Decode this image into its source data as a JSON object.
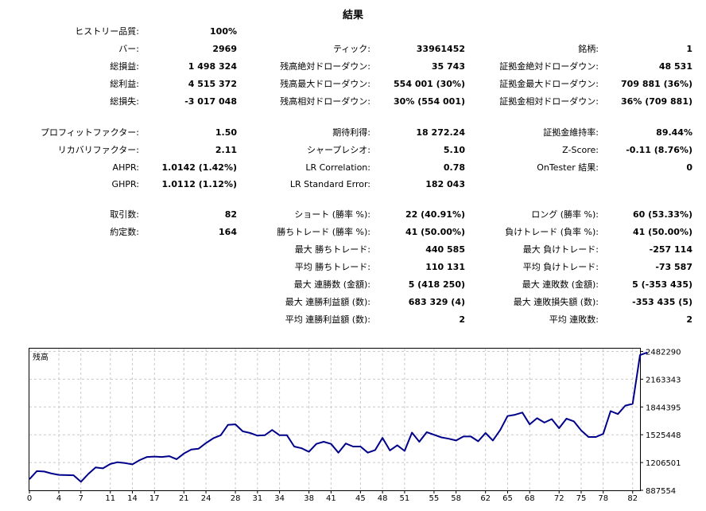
{
  "title": "結果",
  "rows": [
    {
      "y": 40,
      "cells": [
        {
          "label": "ヒストリー品質:",
          "value": "100%"
        },
        null,
        null
      ]
    },
    {
      "y": 62,
      "cells": [
        {
          "label": "バー:",
          "value": "2969"
        },
        {
          "label": "ティック:",
          "value": "33961452"
        },
        {
          "label": "銘柄:",
          "value": "1"
        }
      ]
    },
    {
      "y": 84,
      "cells": [
        {
          "label": "総損益:",
          "value": "1 498 324"
        },
        {
          "label": "残高絶対ドローダウン:",
          "value": "35 743"
        },
        {
          "label": "証拠金絶対ドローダウン:",
          "value": "48 531"
        }
      ]
    },
    {
      "y": 106,
      "cells": [
        {
          "label": "総利益:",
          "value": "4 515 372"
        },
        {
          "label": "残高最大ドローダウン:",
          "value": "554 001 (30%)"
        },
        {
          "label": "証拠金最大ドローダウン:",
          "value": "709 881 (36%)"
        }
      ]
    },
    {
      "y": 128,
      "cells": [
        {
          "label": "総損失:",
          "value": "-3 017 048"
        },
        {
          "label": "残高相対ドローダウン:",
          "value": "30% (554 001)"
        },
        {
          "label": "証拠金相対ドローダウン:",
          "value": "36% (709 881)"
        }
      ]
    },
    {
      "y": 167,
      "cells": [
        {
          "label": "プロフィットファクター:",
          "value": "1.50"
        },
        {
          "label": "期待利得:",
          "value": "18 272.24"
        },
        {
          "label": "証拠金維持率:",
          "value": "89.44%"
        }
      ]
    },
    {
      "y": 189,
      "cells": [
        {
          "label": "リカバリファクター:",
          "value": "2.11"
        },
        {
          "label": "シャープレシオ:",
          "value": "5.10"
        },
        {
          "label": "Z-Score:",
          "value": "-0.11 (8.76%)"
        }
      ]
    },
    {
      "y": 211,
      "cells": [
        {
          "label": "AHPR:",
          "value": "1.0142 (1.42%)"
        },
        {
          "label": "LR Correlation:",
          "value": "0.78"
        },
        {
          "label": "OnTester 結果:",
          "value": "0"
        }
      ]
    },
    {
      "y": 232,
      "cells": [
        {
          "label": "GHPR:",
          "value": "1.0112 (1.12%)"
        },
        {
          "label": "LR Standard Error:",
          "value": "182 043"
        },
        null
      ]
    },
    {
      "y": 270,
      "cells": [
        {
          "label": "取引数:",
          "value": "82"
        },
        {
          "label": "ショート (勝率 %):",
          "value": "22 (40.91%)"
        },
        {
          "label": "ロング (勝率 %):",
          "value": "60 (53.33%)"
        }
      ]
    },
    {
      "y": 292,
      "cells": [
        {
          "label": "約定数:",
          "value": "164"
        },
        {
          "label": "勝ちトレード (勝率 %):",
          "value": "41 (50.00%)"
        },
        {
          "label": "負けトレード (負率 %):",
          "value": "41 (50.00%)"
        }
      ]
    },
    {
      "y": 314,
      "cells": [
        null,
        {
          "label": "最大 勝ちトレード:",
          "value": "440 585"
        },
        {
          "label": "最大 負けトレード:",
          "value": "-257 114"
        }
      ]
    },
    {
      "y": 336,
      "cells": [
        null,
        {
          "label": "平均 勝ちトレード:",
          "value": "110 131"
        },
        {
          "label": "平均 負けトレード:",
          "value": "-73 587"
        }
      ]
    },
    {
      "y": 358,
      "cells": [
        null,
        {
          "label": "最大 連勝数 (金額):",
          "value": "5 (418 250)"
        },
        {
          "label": "最大 連敗数 (金額):",
          "value": "5 (-353 435)"
        }
      ]
    },
    {
      "y": 380,
      "cells": [
        null,
        {
          "label": "最大 連勝利益額 (数):",
          "value": "683 329 (4)"
        },
        {
          "label": "最大 連敗損失額 (数):",
          "value": "-353 435 (5)"
        }
      ]
    },
    {
      "y": 402,
      "cells": [
        null,
        {
          "label": "平均 連勝利益額 (数):",
          "value": "2"
        },
        {
          "label": "平均 連敗数:",
          "value": "2"
        }
      ]
    }
  ],
  "chart_data": {
    "type": "line",
    "title": "残高",
    "line_color": "#00008b",
    "grid": true,
    "xlim": [
      0,
      83
    ],
    "ylim": [
      887554,
      2514000
    ],
    "yticks": [
      887554,
      1206501,
      1525448,
      1844395,
      2163343,
      2482290
    ],
    "ytick_labels": [
      "887554",
      "1206501",
      "1525448",
      "1844395",
      "2163343",
      "2482290"
    ],
    "xticks": [
      0,
      4,
      7,
      11,
      14,
      17,
      21,
      24,
      28,
      31,
      34,
      38,
      41,
      45,
      48,
      51,
      55,
      58,
      62,
      65,
      68,
      72,
      75,
      78,
      82
    ],
    "series": [
      {
        "values": [
          1015000,
          1108000,
          1103000,
          1080000,
          1065000,
          1062000,
          1060000,
          985000,
          1075000,
          1150000,
          1140000,
          1190000,
          1210000,
          1200000,
          1185000,
          1235000,
          1270000,
          1275000,
          1270000,
          1280000,
          1245000,
          1310000,
          1355000,
          1365000,
          1430000,
          1485000,
          1520000,
          1640000,
          1645000,
          1565000,
          1545000,
          1515000,
          1520000,
          1580000,
          1520000,
          1520000,
          1390000,
          1370000,
          1330000,
          1420000,
          1445000,
          1420000,
          1320000,
          1425000,
          1390000,
          1390000,
          1320000,
          1350000,
          1490000,
          1345000,
          1405000,
          1340000,
          1550000,
          1445000,
          1555000,
          1525000,
          1495000,
          1480000,
          1460000,
          1505000,
          1505000,
          1450000,
          1545000,
          1460000,
          1580000,
          1740000,
          1755000,
          1780000,
          1645000,
          1715000,
          1665000,
          1705000,
          1600000,
          1710000,
          1680000,
          1575000,
          1500000,
          1500000,
          1535000,
          1797000,
          1763000,
          1860000,
          1880000,
          2440000,
          2470000
        ]
      }
    ]
  }
}
